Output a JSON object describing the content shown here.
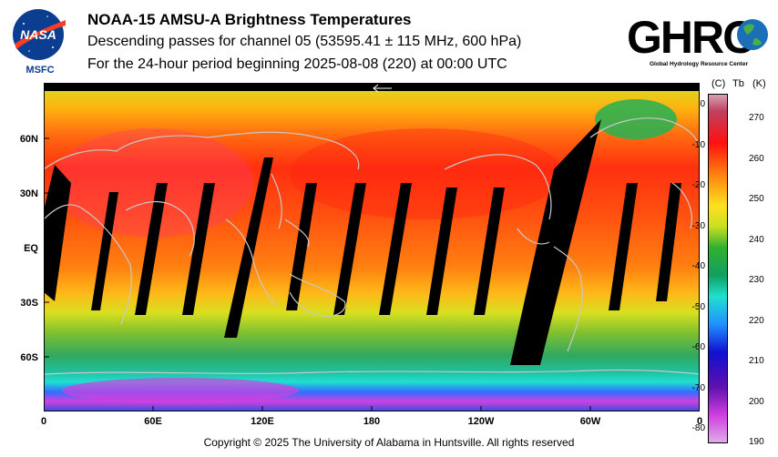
{
  "header": {
    "title": "NOAA-15 AMSU-A Brightness Temperatures",
    "subtitle_line1": "Descending passes for channel 05 (53595.41 ± 115 MHz, 600 hPa)",
    "subtitle_line2": "For the 24-hour period beginning 2025-08-08 (220) at 00:00 UTC"
  },
  "logos": {
    "nasa_text": "NASA",
    "nasa_caption": "MSFC",
    "ghrc_text": "GHRC",
    "ghrc_caption": "Global Hydrology Resource Center"
  },
  "map": {
    "lat_labels": [
      "60N",
      "30N",
      "EQ",
      "30S",
      "60S"
    ],
    "lon_labels": [
      "0",
      "60E",
      "120E",
      "180",
      "120W",
      "60W",
      "0"
    ],
    "colors": {
      "missing": "#000000",
      "coast": "#c8c8c8",
      "ant_magenta": "#d040e0",
      "ant_blue": "#2060ff",
      "band_cyan": "#20d0b0",
      "band_green": "#30b050",
      "band_yellow": "#d8e020",
      "band_orange": "#ff8c10",
      "band_red": "#ff3a10"
    }
  },
  "colorbar": {
    "unit_c": "(C)",
    "unit_tb": "Tb",
    "unit_k": "(K)",
    "celsius_ticks": [
      "0",
      "-10",
      "-20",
      "-30",
      "-40",
      "-50",
      "-60",
      "-70",
      "-80"
    ],
    "kelvin_ticks": [
      "270",
      "260",
      "250",
      "240",
      "230",
      "220",
      "210",
      "200",
      "190"
    ]
  },
  "footer": {
    "copyright": "Copyright © 2025 The University of Alabama in Huntsville.  All rights reserved"
  }
}
